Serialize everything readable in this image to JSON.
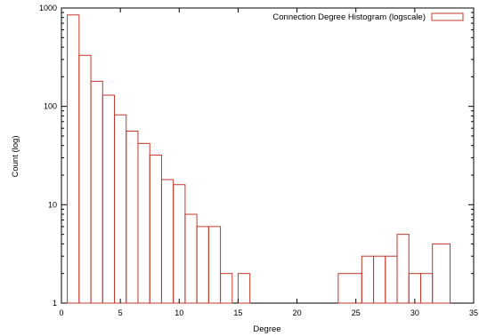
{
  "chart_data": {
    "type": "bar",
    "style": "histogram",
    "legend_label": "Connection Degree Histogram (logscale)",
    "legend_position": "top-right",
    "xlabel": "Degree",
    "ylabel": "Count (log)",
    "xlim": [
      0,
      35
    ],
    "ylim": [
      1,
      1000
    ],
    "yscale": "log",
    "grid": false,
    "bar_color": "#c0392b",
    "x_ticks": [
      "0",
      "5",
      "10",
      "15",
      "20",
      "25",
      "30",
      "35"
    ],
    "y_ticks": [
      "1",
      "10",
      "100",
      "1000"
    ],
    "x_tick_values": [
      0,
      5,
      10,
      15,
      20,
      25,
      30,
      35
    ],
    "y_tick_values": [
      1,
      10,
      100,
      1000
    ],
    "bins": [
      {
        "x0": 0.5,
        "x1": 1.5,
        "value": 850
      },
      {
        "x0": 1.5,
        "x1": 2.5,
        "value": 330
      },
      {
        "x0": 2.5,
        "x1": 3.5,
        "value": 180
      },
      {
        "x0": 3.5,
        "x1": 4.5,
        "value": 130
      },
      {
        "x0": 4.5,
        "x1": 5.5,
        "value": 82
      },
      {
        "x0": 5.5,
        "x1": 6.5,
        "value": 56
      },
      {
        "x0": 6.5,
        "x1": 7.5,
        "value": 42
      },
      {
        "x0": 7.5,
        "x1": 8.5,
        "value": 32
      },
      {
        "x0": 8.5,
        "x1": 9.5,
        "value": 18
      },
      {
        "x0": 9.5,
        "x1": 10.5,
        "value": 16
      },
      {
        "x0": 10.5,
        "x1": 11.5,
        "value": 8
      },
      {
        "x0": 11.5,
        "x1": 12.5,
        "value": 6
      },
      {
        "x0": 12.5,
        "x1": 13.5,
        "value": 6
      },
      {
        "x0": 13.5,
        "x1": 14.5,
        "value": 2
      },
      {
        "x0": 15.0,
        "x1": 16.0,
        "value": 2
      },
      {
        "x0": 23.5,
        "x1": 25.5,
        "value": 2
      },
      {
        "x0": 25.5,
        "x1": 26.5,
        "value": 3
      },
      {
        "x0": 26.5,
        "x1": 27.5,
        "value": 3
      },
      {
        "x0": 27.5,
        "x1": 28.5,
        "value": 3
      },
      {
        "x0": 28.5,
        "x1": 29.5,
        "value": 5
      },
      {
        "x0": 29.5,
        "x1": 30.5,
        "value": 2
      },
      {
        "x0": 30.5,
        "x1": 31.5,
        "value": 2
      },
      {
        "x0": 31.5,
        "x1": 33.0,
        "value": 4
      }
    ]
  }
}
